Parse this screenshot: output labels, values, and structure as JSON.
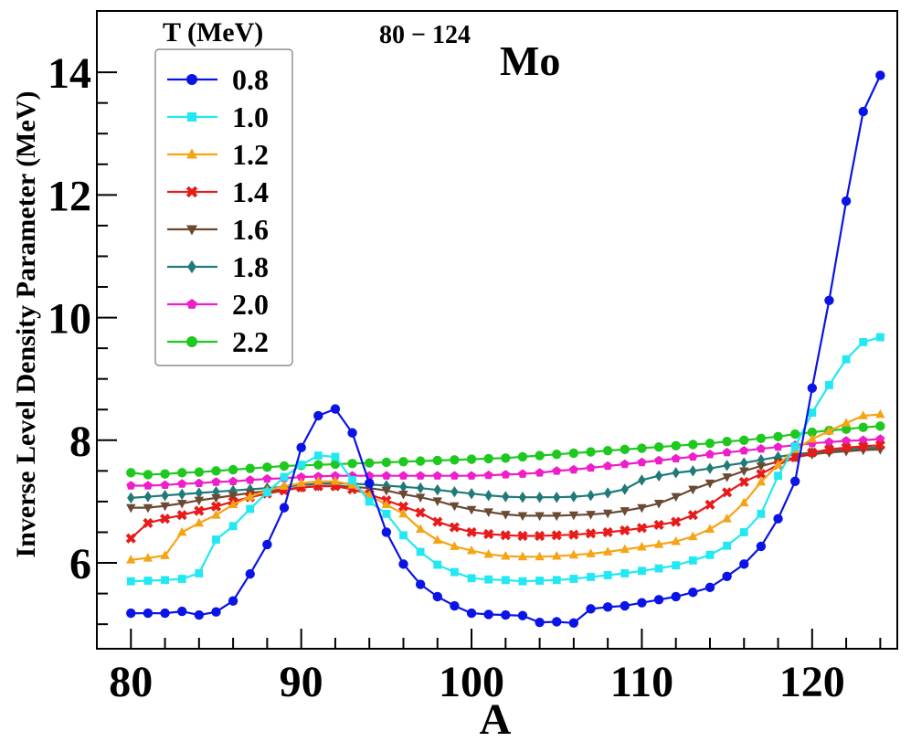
{
  "chart_data": {
    "type": "line",
    "xlabel": "A",
    "ylabel": "Inverse Level Density Parameter (MeV)",
    "xlim": [
      78,
      125
    ],
    "ylim": [
      4.6,
      15
    ],
    "x_ticks": [
      80,
      90,
      100,
      110,
      120
    ],
    "y_ticks": [
      6,
      8,
      10,
      12,
      14
    ],
    "grid": false,
    "legend_title": "T (MeV)",
    "legend_position": "top-left",
    "annotation": {
      "superscript": "80 − 124",
      "element": "Mo"
    },
    "x": [
      80,
      81,
      82,
      83,
      84,
      85,
      86,
      87,
      88,
      89,
      90,
      91,
      92,
      93,
      94,
      95,
      96,
      97,
      98,
      99,
      100,
      101,
      102,
      103,
      104,
      105,
      106,
      107,
      108,
      109,
      110,
      111,
      112,
      113,
      114,
      115,
      116,
      117,
      118,
      119,
      120,
      121,
      122,
      123,
      124
    ],
    "series": [
      {
        "name": "0.8",
        "color": "#0a14e6",
        "marker": "circle",
        "values": [
          5.18,
          5.18,
          5.18,
          5.21,
          5.15,
          5.2,
          5.38,
          5.82,
          6.3,
          6.9,
          7.88,
          8.4,
          8.51,
          8.12,
          7.3,
          6.5,
          5.98,
          5.65,
          5.45,
          5.3,
          5.18,
          5.16,
          5.15,
          5.14,
          5.03,
          5.04,
          5.02,
          5.25,
          5.28,
          5.3,
          5.35,
          5.4,
          5.45,
          5.52,
          5.6,
          5.78,
          5.98,
          6.27,
          6.72,
          7.33,
          8.85,
          10.28,
          11.9,
          13.36,
          13.95
        ]
      },
      {
        "name": "1.0",
        "color": "#22e8f2",
        "marker": "square",
        "values": [
          5.7,
          5.71,
          5.72,
          5.74,
          5.83,
          6.38,
          6.6,
          6.88,
          7.15,
          7.4,
          7.6,
          7.75,
          7.73,
          7.35,
          7.0,
          6.8,
          6.45,
          6.18,
          5.97,
          5.85,
          5.75,
          5.73,
          5.72,
          5.7,
          5.71,
          5.72,
          5.74,
          5.77,
          5.8,
          5.83,
          5.87,
          5.91,
          5.96,
          6.04,
          6.13,
          6.28,
          6.5,
          6.8,
          7.42,
          7.9,
          8.45,
          8.9,
          9.32,
          9.6,
          9.68
        ]
      },
      {
        "name": "1.2",
        "color": "#f5a416",
        "marker": "triangle-up",
        "values": [
          6.05,
          6.08,
          6.12,
          6.5,
          6.65,
          6.78,
          6.95,
          7.08,
          7.18,
          7.25,
          7.3,
          7.33,
          7.33,
          7.27,
          7.1,
          6.95,
          6.8,
          6.55,
          6.37,
          6.27,
          6.2,
          6.14,
          6.11,
          6.1,
          6.1,
          6.11,
          6.13,
          6.15,
          6.18,
          6.22,
          6.26,
          6.3,
          6.35,
          6.43,
          6.55,
          6.72,
          6.98,
          7.32,
          7.6,
          7.85,
          8.02,
          8.15,
          8.28,
          8.4,
          8.42
        ]
      },
      {
        "name": "1.4",
        "color": "#e81b1b",
        "marker": "x",
        "values": [
          6.4,
          6.65,
          6.72,
          6.78,
          6.85,
          6.92,
          7.0,
          7.07,
          7.13,
          7.18,
          7.23,
          7.25,
          7.25,
          7.2,
          7.12,
          7.02,
          6.92,
          6.82,
          6.67,
          6.58,
          6.5,
          6.47,
          6.45,
          6.44,
          6.44,
          6.45,
          6.46,
          6.48,
          6.5,
          6.53,
          6.57,
          6.62,
          6.67,
          6.78,
          6.95,
          7.15,
          7.32,
          7.45,
          7.6,
          7.72,
          7.8,
          7.85,
          7.88,
          7.9,
          7.92
        ]
      },
      {
        "name": "1.6",
        "color": "#6b4a34",
        "marker": "triangle-down",
        "values": [
          6.9,
          6.9,
          6.93,
          6.97,
          7.02,
          7.06,
          7.1,
          7.14,
          7.17,
          7.2,
          7.23,
          7.25,
          7.26,
          7.24,
          7.22,
          7.18,
          7.12,
          7.07,
          7.01,
          6.93,
          6.87,
          6.83,
          6.79,
          6.77,
          6.77,
          6.77,
          6.78,
          6.79,
          6.81,
          6.85,
          6.9,
          6.97,
          7.08,
          7.2,
          7.3,
          7.4,
          7.5,
          7.58,
          7.65,
          7.72,
          7.77,
          7.8,
          7.82,
          7.84,
          7.85
        ]
      },
      {
        "name": "1.8",
        "color": "#1f7a78",
        "marker": "diamond",
        "values": [
          7.06,
          7.08,
          7.1,
          7.12,
          7.14,
          7.16,
          7.18,
          7.2,
          7.22,
          7.24,
          7.27,
          7.29,
          7.3,
          7.29,
          7.28,
          7.26,
          7.24,
          7.22,
          7.19,
          7.16,
          7.13,
          7.1,
          7.08,
          7.07,
          7.07,
          7.07,
          7.08,
          7.1,
          7.14,
          7.2,
          7.35,
          7.42,
          7.47,
          7.5,
          7.54,
          7.59,
          7.63,
          7.68,
          7.73,
          7.77,
          7.8,
          7.83,
          7.85,
          7.87,
          7.88
        ]
      },
      {
        "name": "2.0",
        "color": "#ee1ec8",
        "marker": "pentagon",
        "values": [
          7.26,
          7.26,
          7.27,
          7.29,
          7.3,
          7.32,
          7.33,
          7.35,
          7.37,
          7.38,
          7.4,
          7.41,
          7.42,
          7.42,
          7.42,
          7.42,
          7.42,
          7.42,
          7.42,
          7.42,
          7.42,
          7.43,
          7.44,
          7.45,
          7.47,
          7.5,
          7.52,
          7.55,
          7.58,
          7.61,
          7.64,
          7.67,
          7.7,
          7.73,
          7.77,
          7.8,
          7.83,
          7.86,
          7.89,
          7.92,
          7.95,
          7.97,
          7.99,
          8.0,
          8.02
        ]
      },
      {
        "name": "2.2",
        "color": "#1fc81f",
        "marker": "circle",
        "values": [
          7.47,
          7.44,
          7.45,
          7.47,
          7.48,
          7.5,
          7.52,
          7.54,
          7.56,
          7.58,
          7.59,
          7.6,
          7.61,
          7.62,
          7.63,
          7.64,
          7.65,
          7.66,
          7.67,
          7.68,
          7.69,
          7.7,
          7.71,
          7.73,
          7.75,
          7.77,
          7.79,
          7.81,
          7.83,
          7.85,
          7.87,
          7.89,
          7.91,
          7.93,
          7.95,
          7.98,
          8.0,
          8.03,
          8.06,
          8.1,
          8.13,
          8.16,
          8.18,
          8.21,
          8.23
        ]
      }
    ]
  }
}
